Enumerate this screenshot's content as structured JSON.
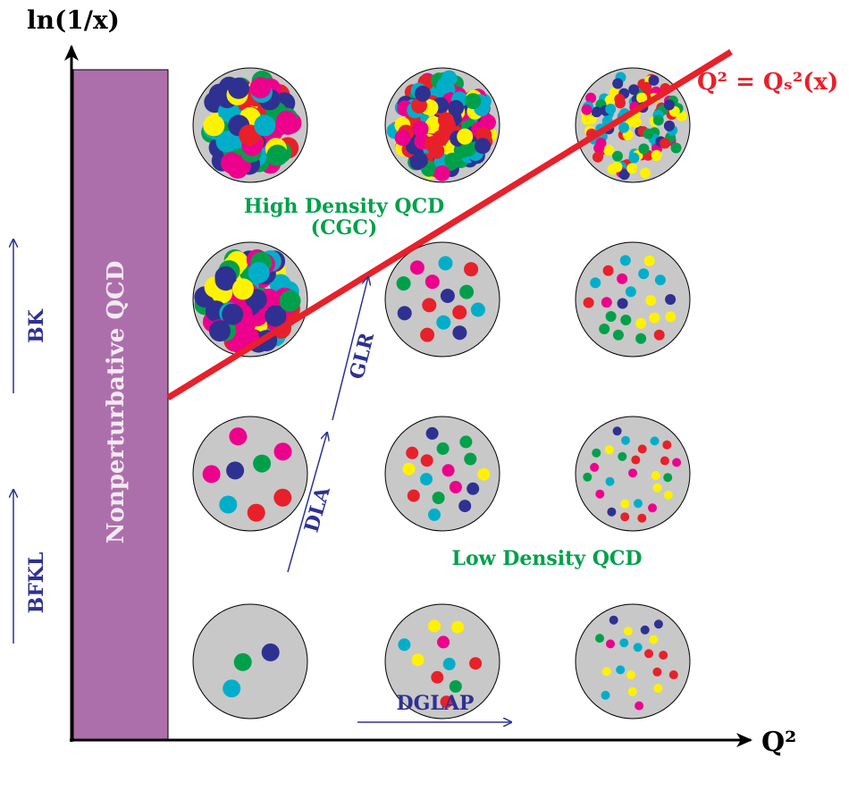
{
  "axes": {
    "y_label": "ln(1/x)",
    "x_label": "Q²"
  },
  "saturation_line": {
    "label": "Q² = Qₛ²(x)"
  },
  "regions": {
    "high_density": "High Density QCD",
    "high_density_sub": "(CGC)",
    "low_density": "Low Density QCD",
    "nonperturbative": "Nonperturbative QCD"
  },
  "evolution": {
    "bk": "BK",
    "bfkl": "BFKL",
    "dglap": "DGLAP",
    "dla": "DLA",
    "glr": "GLR"
  }
}
